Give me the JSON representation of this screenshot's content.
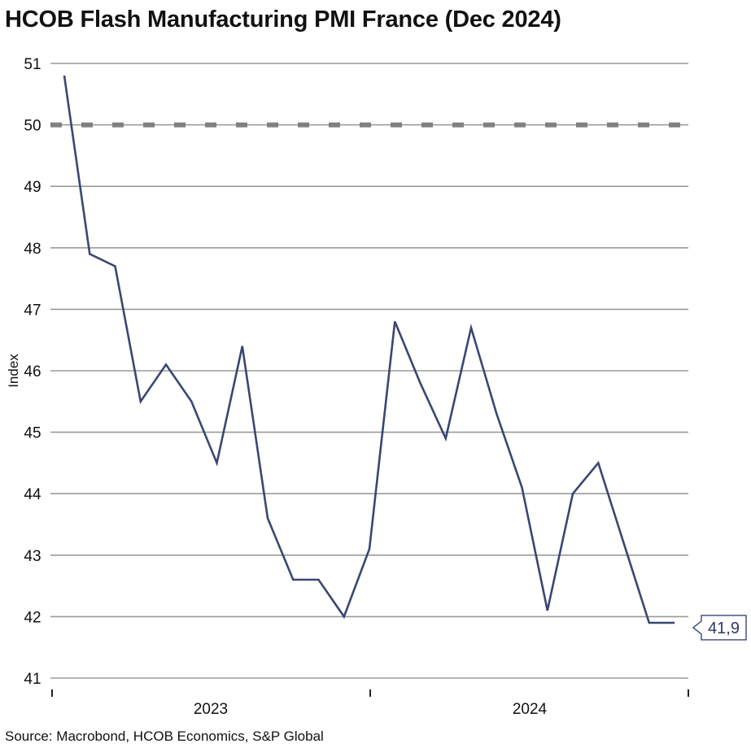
{
  "title": "HCOB Flash Manufacturing PMI France (Dec 2024)",
  "source": "Source: Macrobond, HCOB Economics, S&P Global",
  "colors": {
    "line": "#3b4673",
    "grid": "#9a9a9a",
    "reference": "#808080",
    "callout_border": "#3b4673"
  },
  "chart_data": {
    "type": "line",
    "title": "HCOB Flash Manufacturing PMI France (Dec 2024)",
    "ylabel": "Index",
    "ylim": [
      41,
      51
    ],
    "yticks": [
      41,
      42,
      43,
      44,
      45,
      46,
      47,
      48,
      49,
      50,
      51
    ],
    "xticks": [
      "2023",
      "2024"
    ],
    "grid": true,
    "reference_line": {
      "value": 50,
      "style": "dashed"
    },
    "x": [
      "2022-12",
      "2023-01",
      "2023-02",
      "2023-03",
      "2023-04",
      "2023-05",
      "2023-06",
      "2023-07",
      "2023-08",
      "2023-09",
      "2023-10",
      "2023-11",
      "2023-12",
      "2024-01",
      "2024-02",
      "2024-03",
      "2024-04",
      "2024-05",
      "2024-06",
      "2024-07",
      "2024-08",
      "2024-09",
      "2024-10",
      "2024-11",
      "2024-12"
    ],
    "series": [
      {
        "values": [
          50.8,
          47.9,
          47.7,
          45.5,
          46.1,
          45.5,
          44.5,
          46.4,
          43.6,
          42.6,
          42.6,
          42.0,
          43.1,
          46.8,
          45.8,
          44.9,
          46.7,
          45.3,
          44.1,
          42.1,
          44.0,
          44.5,
          43.2,
          41.9,
          41.9
        ]
      }
    ],
    "last_value_label": "41,9"
  }
}
